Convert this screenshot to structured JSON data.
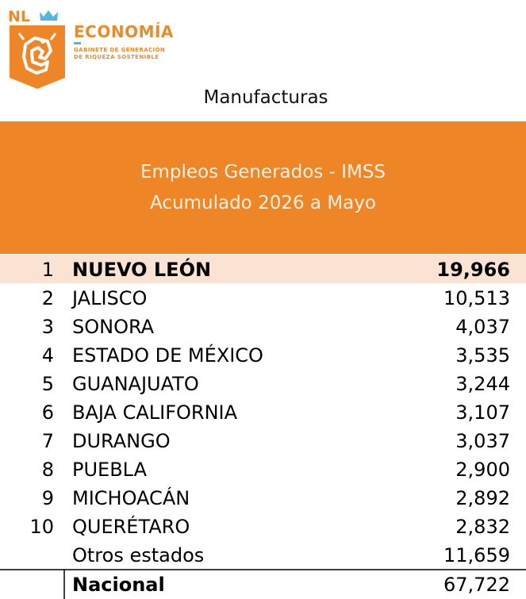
{
  "header": {
    "logo_text": "NL",
    "brand": "ECONOMÍA",
    "brand_sub": [
      "GABINETE DE GENERACIÓN",
      "DE RIQUEZA SOSTENIBLE"
    ],
    "sector": "Manufacturas"
  },
  "colors": {
    "orange": "#EE8527",
    "logo_orange": "#E98B2A",
    "logo_blue": "#4FB7E3",
    "highlight_row": "#FBE3D3",
    "text": "#000000"
  },
  "chart_data": {
    "type": "table",
    "title": "Empleos Generados - IMSS",
    "subtitle": "Acumulado 2026 a Mayo",
    "rows": [
      {
        "rank": "1",
        "state": "NUEVO LEÓN",
        "value": 19966,
        "value_label": "19,966",
        "highlight": true
      },
      {
        "rank": "2",
        "state": "JALISCO",
        "value": 10513,
        "value_label": "10,513"
      },
      {
        "rank": "3",
        "state": "SONORA",
        "value": 4037,
        "value_label": "4,037"
      },
      {
        "rank": "4",
        "state": "ESTADO DE MÉXICO",
        "value": 3535,
        "value_label": "3,535"
      },
      {
        "rank": "5",
        "state": "GUANAJUATO",
        "value": 3244,
        "value_label": "3,244"
      },
      {
        "rank": "6",
        "state": "BAJA CALIFORNIA",
        "value": 3107,
        "value_label": "3,107"
      },
      {
        "rank": "7",
        "state": "DURANGO",
        "value": 3037,
        "value_label": "3,037"
      },
      {
        "rank": "8",
        "state": "PUEBLA",
        "value": 2900,
        "value_label": "2,900"
      },
      {
        "rank": "9",
        "state": "MICHOACÁN",
        "value": 2892,
        "value_label": "2,892"
      },
      {
        "rank": "10",
        "state": "QUERÉTARO",
        "value": 2832,
        "value_label": "2,832"
      },
      {
        "rank": "",
        "state": "Otros estados",
        "value": 11659,
        "value_label": "11,659"
      }
    ],
    "total": {
      "label": "Nacional",
      "value": 67722,
      "value_label": "67,722"
    }
  }
}
